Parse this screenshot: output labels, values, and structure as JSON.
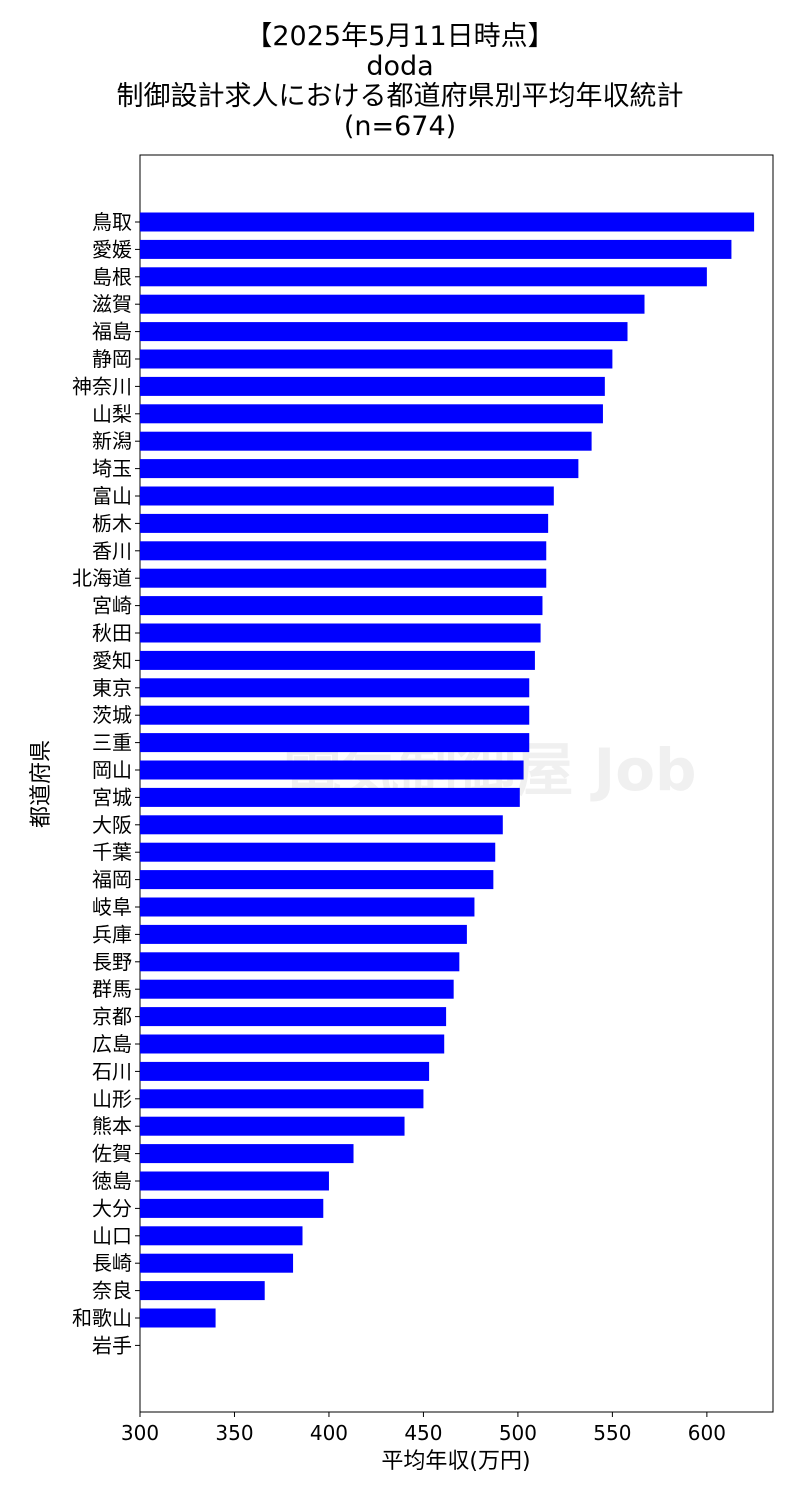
{
  "chart_data": {
    "type": "bar",
    "orientation": "horizontal",
    "title_lines": [
      "【2025年5月11日時点】",
      "doda",
      "制御設計求人における都道府県別平均年収統計",
      "(n=674)"
    ],
    "xlabel": "平均年収(万円)",
    "ylabel": "都道府県",
    "xlim": [
      300,
      635
    ],
    "xticks": [
      300,
      350,
      400,
      450,
      500,
      550,
      600
    ],
    "grid": false,
    "bar_color": "#0000ff",
    "watermark": "電気制御屋 Job",
    "categories": [
      "鳥取",
      "愛媛",
      "島根",
      "滋賀",
      "福島",
      "静岡",
      "神奈川",
      "山梨",
      "新潟",
      "埼玉",
      "富山",
      "栃木",
      "香川",
      "北海道",
      "宮崎",
      "秋田",
      "愛知",
      "東京",
      "茨城",
      "三重",
      "岡山",
      "宮城",
      "大阪",
      "千葉",
      "福岡",
      "岐阜",
      "兵庫",
      "長野",
      "群馬",
      "京都",
      "広島",
      "石川",
      "山形",
      "熊本",
      "佐賀",
      "徳島",
      "大分",
      "山口",
      "長崎",
      "奈良",
      "和歌山",
      "岩手"
    ],
    "values": [
      625,
      613,
      600,
      567,
      558,
      550,
      546,
      545,
      539,
      532,
      519,
      516,
      515,
      515,
      513,
      512,
      509,
      506,
      506,
      506,
      503,
      501,
      492,
      488,
      487,
      477,
      473,
      469,
      466,
      462,
      461,
      453,
      450,
      440,
      413,
      400,
      397,
      386,
      381,
      366,
      340,
      null
    ]
  }
}
